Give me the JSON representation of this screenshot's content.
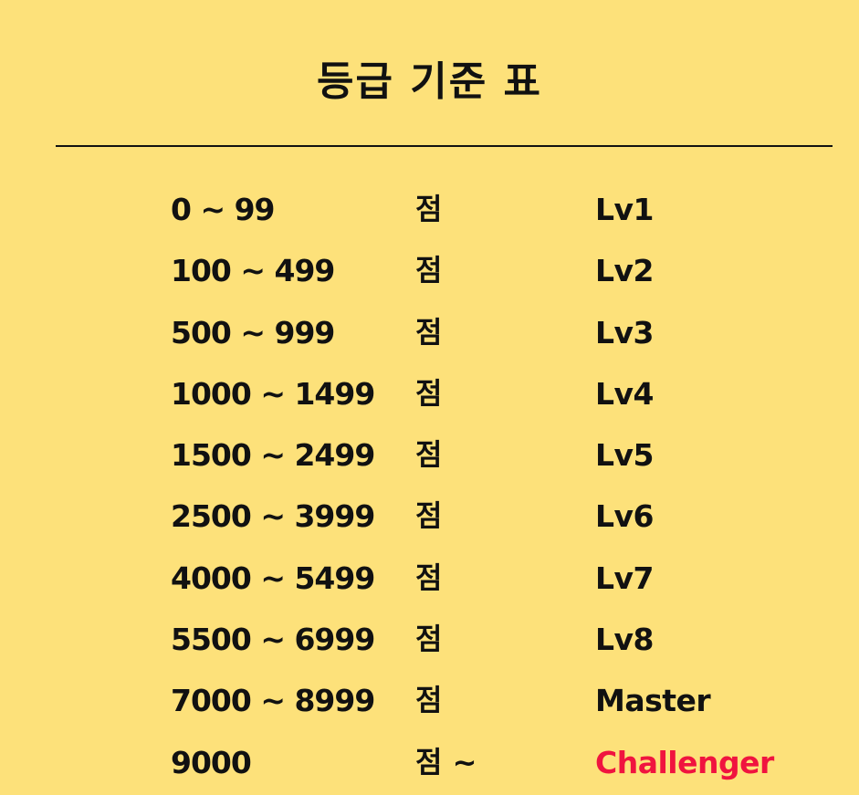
{
  "title": "등급 기준 표",
  "colors": {
    "background": "#fde17a",
    "text": "#111111",
    "highlight": "#f0143f"
  },
  "rows": [
    {
      "range": "0 ~ 99",
      "unit": "점",
      "level": "Lv1"
    },
    {
      "range": "100 ~ 499",
      "unit": "점",
      "level": "Lv2"
    },
    {
      "range": "500 ~ 999",
      "unit": "점",
      "level": "Lv3"
    },
    {
      "range": "1000 ~ 1499",
      "unit": "점",
      "level": "Lv4"
    },
    {
      "range": "1500 ~ 2499",
      "unit": "점",
      "level": "Lv5"
    },
    {
      "range": "2500 ~ 3999",
      "unit": "점",
      "level": "Lv6"
    },
    {
      "range": "4000 ~ 5499",
      "unit": "점",
      "level": "Lv7"
    },
    {
      "range": "5500 ~ 6999",
      "unit": "점",
      "level": "Lv8"
    },
    {
      "range": "7000 ~ 8999",
      "unit": "점",
      "level": "Master"
    },
    {
      "range": "9000",
      "unit": "점 ~",
      "level": "Challenger"
    }
  ]
}
